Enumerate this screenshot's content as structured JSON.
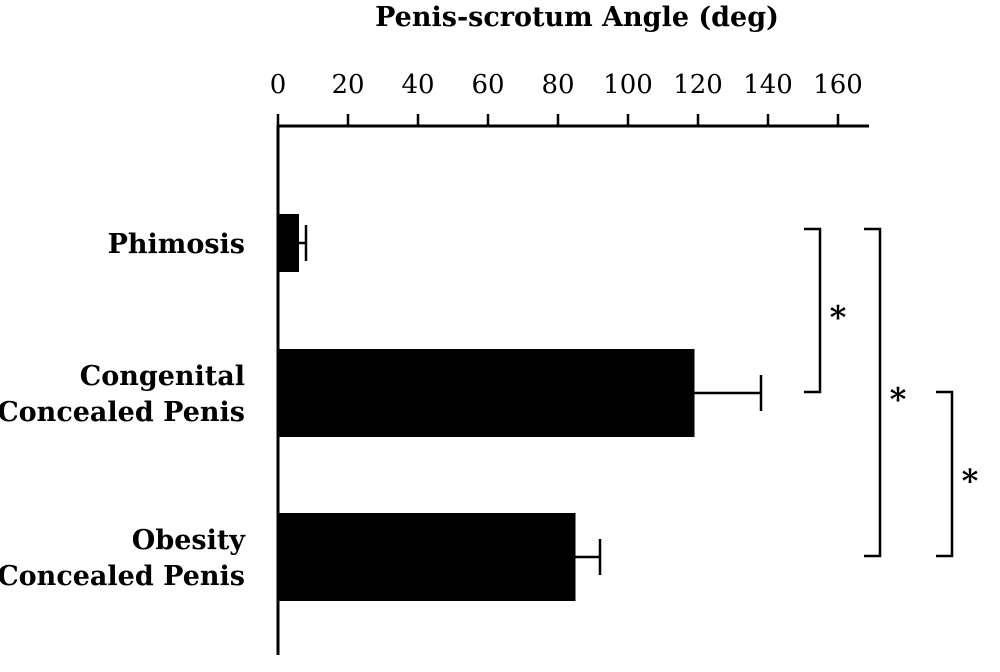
{
  "chart_data": {
    "type": "bar",
    "orientation": "horizontal",
    "title": "Penis-scrotum Angle (deg)",
    "xlabel": "Penis-scrotum Angle (deg)",
    "ylabel": "",
    "axis_position": "top",
    "xlim": [
      0,
      168
    ],
    "x_ticks": [
      0,
      20,
      40,
      60,
      80,
      100,
      120,
      140,
      160
    ],
    "categories": [
      {
        "lines": [
          "Phimosis"
        ]
      },
      {
        "lines": [
          "Congenital",
          "Concealed Penis"
        ]
      },
      {
        "lines": [
          "Obesity",
          "Concealed Penis"
        ]
      }
    ],
    "values": [
      6,
      119,
      85
    ],
    "errors": [
      2,
      19,
      7
    ],
    "bar_color": "#000000",
    "grid": false,
    "legend": "none",
    "significance": [
      {
        "from": 0,
        "to": 1,
        "label": "*"
      },
      {
        "from": 0,
        "to": 2,
        "label": "*"
      },
      {
        "from": 1,
        "to": 2,
        "label": "*"
      }
    ]
  }
}
